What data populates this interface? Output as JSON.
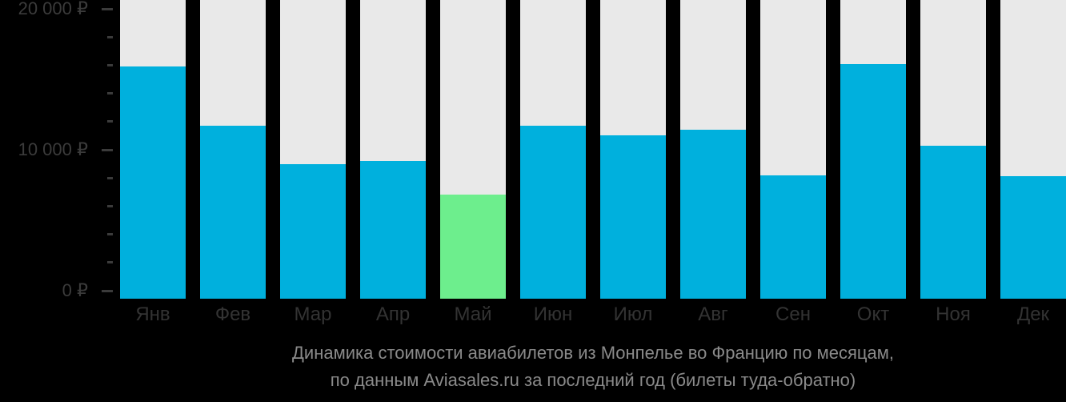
{
  "chart_data": {
    "type": "bar",
    "categories": [
      "Янв",
      "Фев",
      "Мар",
      "Апр",
      "Май",
      "Июн",
      "Июл",
      "Авг",
      "Сен",
      "Окт",
      "Ноя",
      "Дек"
    ],
    "values": [
      15900,
      11700,
      9000,
      9200,
      6800,
      11700,
      11000,
      11400,
      8200,
      16100,
      10300,
      8100
    ],
    "highlight_index": 4,
    "title": "Динамика стоимости авиабилетов из Монпелье во Францию по месяцам,",
    "subtitle": "по данным Aviasales.ru за последний год (билеты туда-обратно)",
    "ylabel": "",
    "xlabel": "",
    "ylim": [
      0,
      20000
    ],
    "y_minor_step": 2000,
    "y_ticks": [
      {
        "value": 0,
        "label": "0 ₽"
      },
      {
        "value": 10000,
        "label": "10 000 ₽"
      },
      {
        "value": 20000,
        "label": "20 000 ₽"
      }
    ],
    "legend": "none",
    "grid": "off",
    "colors": {
      "bar": "#00b0dd",
      "highlight": "#6dee8d",
      "column_track": "#e9e9e9",
      "background": "#000000",
      "axis_text": "#3b3b3b",
      "month_text": "#333333",
      "caption_text": "#8a8a8a"
    }
  }
}
